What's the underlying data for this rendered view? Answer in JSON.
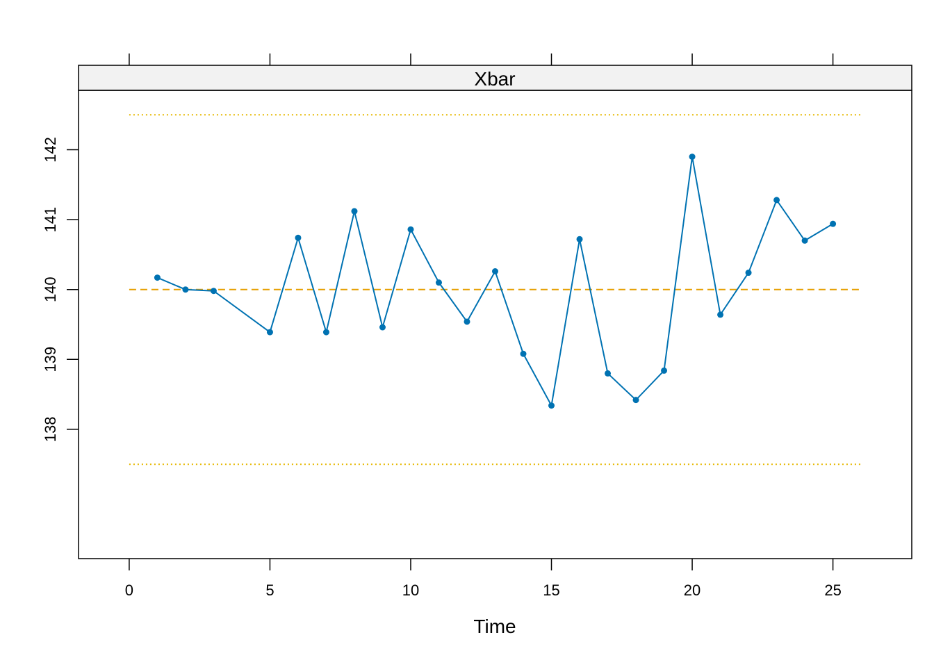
{
  "chart_data": {
    "type": "line",
    "title": "Xbar",
    "xlabel": "Time",
    "ylabel": "",
    "xlim": [
      -1.8,
      27.8
    ],
    "ylim": [
      136.15,
      142.85
    ],
    "x_ticks": [
      0,
      5,
      10,
      15,
      20,
      25
    ],
    "y_ticks": [
      138,
      139,
      140,
      141,
      142
    ],
    "grid": false,
    "colors": {
      "series": "#0072b2",
      "center_line": "#e69f00",
      "limit_lines": "#e6b800"
    },
    "series": [
      {
        "x": [
          1,
          2,
          3,
          5,
          6,
          7,
          8,
          9,
          10,
          11,
          12,
          13,
          14,
          15,
          16,
          17,
          18,
          19,
          20,
          21,
          22,
          23,
          24,
          25
        ],
        "values": [
          140.17,
          140.0,
          139.98,
          139.39,
          140.74,
          139.39,
          141.12,
          139.46,
          140.86,
          140.1,
          139.54,
          140.26,
          139.08,
          138.34,
          140.72,
          138.8,
          138.42,
          138.84,
          141.9,
          139.64,
          140.24,
          141.28,
          140.7,
          140.94
        ]
      }
    ],
    "reference_lines": [
      {
        "kind": "center",
        "y": 140.0,
        "style": "dashed",
        "x_range": [
          0,
          26
        ]
      },
      {
        "kind": "upper-limit",
        "y": 142.5,
        "style": "dotted",
        "x_range": [
          0,
          26
        ]
      },
      {
        "kind": "lower-limit",
        "y": 137.5,
        "style": "dotted",
        "x_range": [
          0,
          26
        ]
      }
    ]
  }
}
